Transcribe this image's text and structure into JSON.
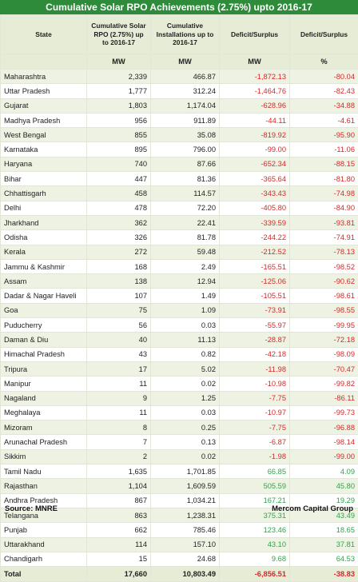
{
  "title": "Cumulative Solar RPO Achievements (2.75%) upto 2016-17",
  "headers": [
    "State",
    "Cumulative Solar RPO (2.75%) up to 2016-17",
    "Cumulative Installations up to 2016-17",
    "Deficit/Surplus",
    "Deficit/Surplus"
  ],
  "units": [
    "",
    "MW",
    "MW",
    "MW",
    "%"
  ],
  "rows": [
    [
      "Maharashtra",
      "2,339",
      "466.87",
      "-1,872.13",
      "-80.04"
    ],
    [
      "Uttar Pradesh",
      "1,777",
      "312.24",
      "-1,464.76",
      "-82.43"
    ],
    [
      "Gujarat",
      "1,803",
      "1,174.04",
      "-628.96",
      "-34.88"
    ],
    [
      "Madhya Pradesh",
      "956",
      "911.89",
      "-44.11",
      "-4.61"
    ],
    [
      "West Bengal",
      "855",
      "35.08",
      "-819.92",
      "-95.90"
    ],
    [
      "Karnataka",
      "895",
      "796.00",
      "-99.00",
      "-11.06"
    ],
    [
      "Haryana",
      "740",
      "87.66",
      "-652.34",
      "-88.15"
    ],
    [
      "Bihar",
      "447",
      "81.36",
      "-365.64",
      "-81.80"
    ],
    [
      "Chhattisgarh",
      "458",
      "114.57",
      "-343.43",
      "-74.98"
    ],
    [
      "Delhi",
      "478",
      "72.20",
      "-405.80",
      "-84.90"
    ],
    [
      "Jharkhand",
      "362",
      "22.41",
      "-339.59",
      "-93.81"
    ],
    [
      "Odisha",
      "326",
      "81.78",
      "-244.22",
      "-74.91"
    ],
    [
      "Kerala",
      "272",
      "59.48",
      "-212.52",
      "-78.13"
    ],
    [
      "Jammu & Kashmir",
      "168",
      "2.49",
      "-165.51",
      "-98.52"
    ],
    [
      "Assam",
      "138",
      "12.94",
      "-125.06",
      "-90.62"
    ],
    [
      "Dadar & Nagar Haveli",
      "107",
      "1.49",
      "-105.51",
      "-98.61"
    ],
    [
      "Goa",
      "75",
      "1.09",
      "-73.91",
      "-98.55"
    ],
    [
      "Puducherry",
      "56",
      "0.03",
      "-55.97",
      "-99.95"
    ],
    [
      "Daman & Diu",
      "40",
      "11.13",
      "-28.87",
      "-72.18"
    ],
    [
      "Himachal Pradesh",
      "43",
      "0.82",
      "-42.18",
      "-98.09"
    ],
    [
      "Tripura",
      "17",
      "5.02",
      "-11.98",
      "-70.47"
    ],
    [
      "Manipur",
      "11",
      "0.02",
      "-10.98",
      "-99.82"
    ],
    [
      "Nagaland",
      "9",
      "1.25",
      "-7.75",
      "-86.11"
    ],
    [
      "Meghalaya",
      "11",
      "0.03",
      "-10.97",
      "-99.73"
    ],
    [
      "Mizoram",
      "8",
      "0.25",
      "-7.75",
      "-96.88"
    ],
    [
      "Arunachal Pradesh",
      "7",
      "0.13",
      "-6.87",
      "-98.14"
    ],
    [
      "Sikkim",
      "2",
      "0.02",
      "-1.98",
      "-99.00"
    ],
    [
      "Tamil Nadu",
      "1,635",
      "1,701.85",
      "66.85",
      "4.09"
    ],
    [
      "Rajasthan",
      "1,104",
      "1,609.59",
      "505.59",
      "45.80"
    ],
    [
      "Andhra Pradesh",
      "867",
      "1,034.21",
      "167.21",
      "19.29"
    ],
    [
      "Telangana",
      "863",
      "1,238.31",
      "375.31",
      "43.49"
    ],
    [
      "Punjab",
      "662",
      "785.46",
      "123.46",
      "18.65"
    ],
    [
      "Uttarakhand",
      "114",
      "157.10",
      "43.10",
      "37.81"
    ],
    [
      "Chandigarh",
      "15",
      "24.68",
      "9.68",
      "64.53"
    ]
  ],
  "total": [
    "Total",
    "17,660",
    "10,803.49",
    "-6,856.51",
    "-38.83"
  ],
  "footer": {
    "source": "Source: MNRE",
    "brand": "Mercom Capital Group"
  },
  "colors": {
    "header_green": "#2e8b3a",
    "negative": "#d42a2a",
    "positive": "#2fa44a",
    "band": "#e6ecd6"
  }
}
